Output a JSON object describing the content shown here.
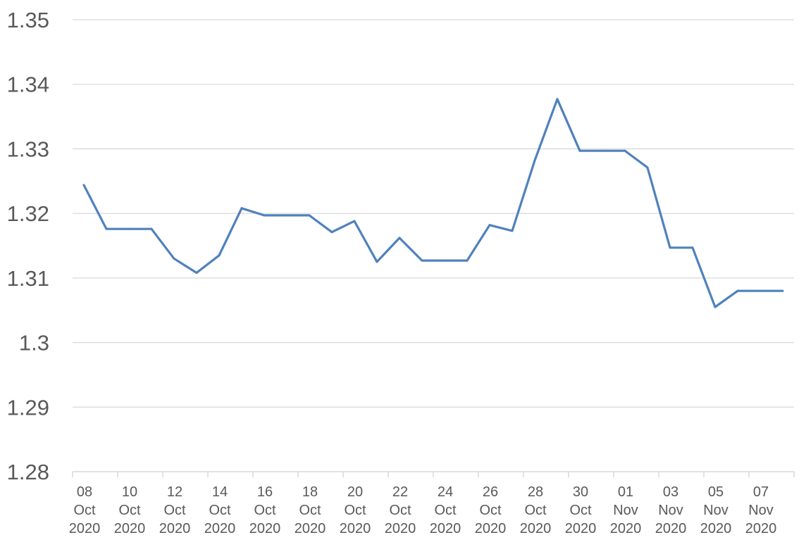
{
  "chart_data": {
    "type": "line",
    "title": "",
    "xlabel": "",
    "ylabel": "",
    "ylim": [
      1.28,
      1.35
    ],
    "yticks": [
      "1.28",
      "1.29",
      "1.3",
      "1.31",
      "1.32",
      "1.33",
      "1.34",
      "1.35"
    ],
    "grid": true,
    "legend": "none",
    "line_color": "#4f81bd",
    "x_tick_labels": [
      [
        "08",
        "Oct",
        "2020"
      ],
      [
        "10",
        "Oct",
        "2020"
      ],
      [
        "12",
        "Oct",
        "2020"
      ],
      [
        "14",
        "Oct",
        "2020"
      ],
      [
        "16",
        "Oct",
        "2020"
      ],
      [
        "18",
        "Oct",
        "2020"
      ],
      [
        "20",
        "Oct",
        "2020"
      ],
      [
        "22",
        "Oct",
        "2020"
      ],
      [
        "24",
        "Oct",
        "2020"
      ],
      [
        "26",
        "Oct",
        "2020"
      ],
      [
        "28",
        "Oct",
        "2020"
      ],
      [
        "30",
        "Oct",
        "2020"
      ],
      [
        "01",
        "Nov",
        "2020"
      ],
      [
        "03",
        "Nov",
        "2020"
      ],
      [
        "05",
        "Nov",
        "2020"
      ],
      [
        "07",
        "Nov",
        "2020"
      ]
    ],
    "x": [
      "2020-10-08",
      "2020-10-09",
      "2020-10-10",
      "2020-10-11",
      "2020-10-12",
      "2020-10-13",
      "2020-10-14",
      "2020-10-15",
      "2020-10-16",
      "2020-10-17",
      "2020-10-18",
      "2020-10-19",
      "2020-10-20",
      "2020-10-21",
      "2020-10-22",
      "2020-10-23",
      "2020-10-24",
      "2020-10-25",
      "2020-10-26",
      "2020-10-27",
      "2020-10-28",
      "2020-10-29",
      "2020-10-30",
      "2020-10-31",
      "2020-11-01",
      "2020-11-02",
      "2020-11-03",
      "2020-11-04",
      "2020-11-05",
      "2020-11-06",
      "2020-11-07",
      "2020-11-08"
    ],
    "series": [
      {
        "values": [
          1.3244,
          1.3176,
          1.3176,
          1.3176,
          1.313,
          1.3108,
          1.3135,
          1.3208,
          1.3197,
          1.3197,
          1.3197,
          1.3171,
          1.3188,
          1.3125,
          1.3162,
          1.3127,
          1.3127,
          1.3127,
          1.3182,
          1.3173,
          1.3282,
          1.3377,
          1.3297,
          1.3297,
          1.3297,
          1.3271,
          1.3147,
          1.3147,
          1.3055,
          1.308,
          1.308,
          1.308
        ]
      }
    ]
  }
}
